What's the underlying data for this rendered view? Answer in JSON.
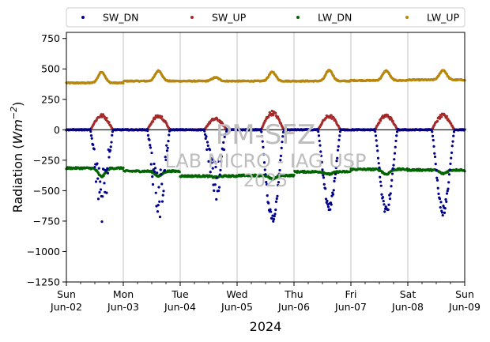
{
  "chart_data": {
    "type": "scatter",
    "title": "",
    "ylabel_main": "Radiation (",
    "ylabel_unit": "Wm",
    "ylabel_exp": "−2",
    "ylabel_close": ")",
    "xlabel": "2024",
    "ylim": [
      -1250,
      800
    ],
    "yticks": [
      {
        "value": -1250,
        "label": "−1250"
      },
      {
        "value": -1000,
        "label": "−1000"
      },
      {
        "value": -750,
        "label": "−750"
      },
      {
        "value": -500,
        "label": "−500"
      },
      {
        "value": -250,
        "label": "−250"
      },
      {
        "value": 0,
        "label": "0"
      },
      {
        "value": 250,
        "label": "250"
      },
      {
        "value": 500,
        "label": "500"
      },
      {
        "value": 750,
        "label": "750"
      }
    ],
    "xlim_days": [
      0,
      7
    ],
    "xticks": [
      {
        "day": 0,
        "line1": "Sun",
        "line2": "Jun-02"
      },
      {
        "day": 1,
        "line1": "Mon",
        "line2": "Jun-03"
      },
      {
        "day": 2,
        "line1": "Tue",
        "line2": "Jun-04"
      },
      {
        "day": 3,
        "line1": "Wed",
        "line2": "Jun-05"
      },
      {
        "day": 4,
        "line1": "Thu",
        "line2": "Jun-06"
      },
      {
        "day": 5,
        "line1": "Fri",
        "line2": "Jun-07"
      },
      {
        "day": 6,
        "line1": "Sat",
        "line2": "Jun-08"
      },
      {
        "day": 7,
        "line1": "Sun",
        "line2": "Jun-09"
      }
    ],
    "grid": "vertical",
    "legend_position": "top",
    "zero_line": true,
    "series": [
      {
        "name": "SW_DN",
        "color": "#00008b",
        "kind": "sw_dn",
        "daily_peak": [
          -720,
          -700,
          -560,
          -760,
          -650,
          -680,
          -690
        ]
      },
      {
        "name": "SW_UP",
        "color": "#a52a2a",
        "kind": "sw_up",
        "daily_peak": [
          125,
          120,
          95,
          150,
          120,
          125,
          125
        ]
      },
      {
        "name": "LW_DN",
        "color": "#006400",
        "kind": "lw_dn",
        "daily_base": [
          -315,
          -340,
          -380,
          -375,
          -345,
          -325,
          -330
        ],
        "daily_amp": [
          70,
          40,
          10,
          30,
          20,
          40,
          30
        ],
        "end_value": -345
      },
      {
        "name": "LW_UP",
        "color": "#b8860b",
        "kind": "lw_up",
        "daily_base": [
          385,
          400,
          400,
          400,
          400,
          405,
          410
        ],
        "daily_peak": [
          475,
          485,
          430,
          475,
          490,
          485,
          490
        ],
        "end_value": 405
      }
    ]
  },
  "watermark": {
    "line1": "PM-SFZ",
    "line2": "LAB MICRO - IAG USP",
    "line3": "2025"
  }
}
